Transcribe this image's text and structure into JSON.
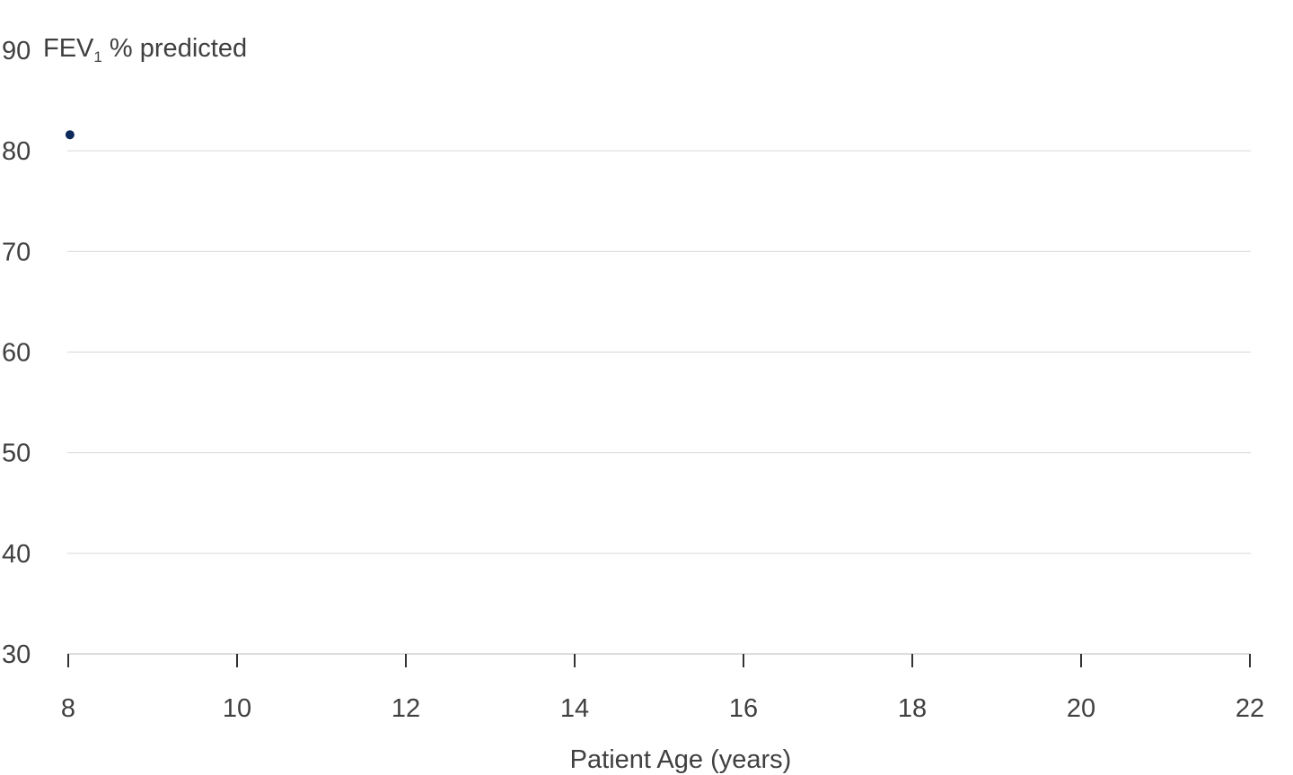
{
  "chart_data": {
    "type": "scatter",
    "title": "",
    "xlabel": "Patient Age (years)",
    "ylabel": {
      "prefix": "FEV",
      "subscript": "1",
      "suffix": " % predicted"
    },
    "xlim": [
      8,
      22
    ],
    "ylim": [
      30,
      90
    ],
    "xticks": [
      8,
      10,
      12,
      14,
      16,
      18,
      20,
      22
    ],
    "yticks": [
      30,
      40,
      50,
      60,
      70,
      80,
      90
    ],
    "grid": true,
    "series": [
      {
        "color": "#0d2a5c",
        "points": [
          {
            "x": 8.02,
            "y": 81.6
          }
        ]
      }
    ]
  },
  "colors": {
    "text": "#404040",
    "grid": "#d9d9d9",
    "axis": "#bdbdbd",
    "tick": "#333333",
    "point": "#0d2a5c"
  }
}
